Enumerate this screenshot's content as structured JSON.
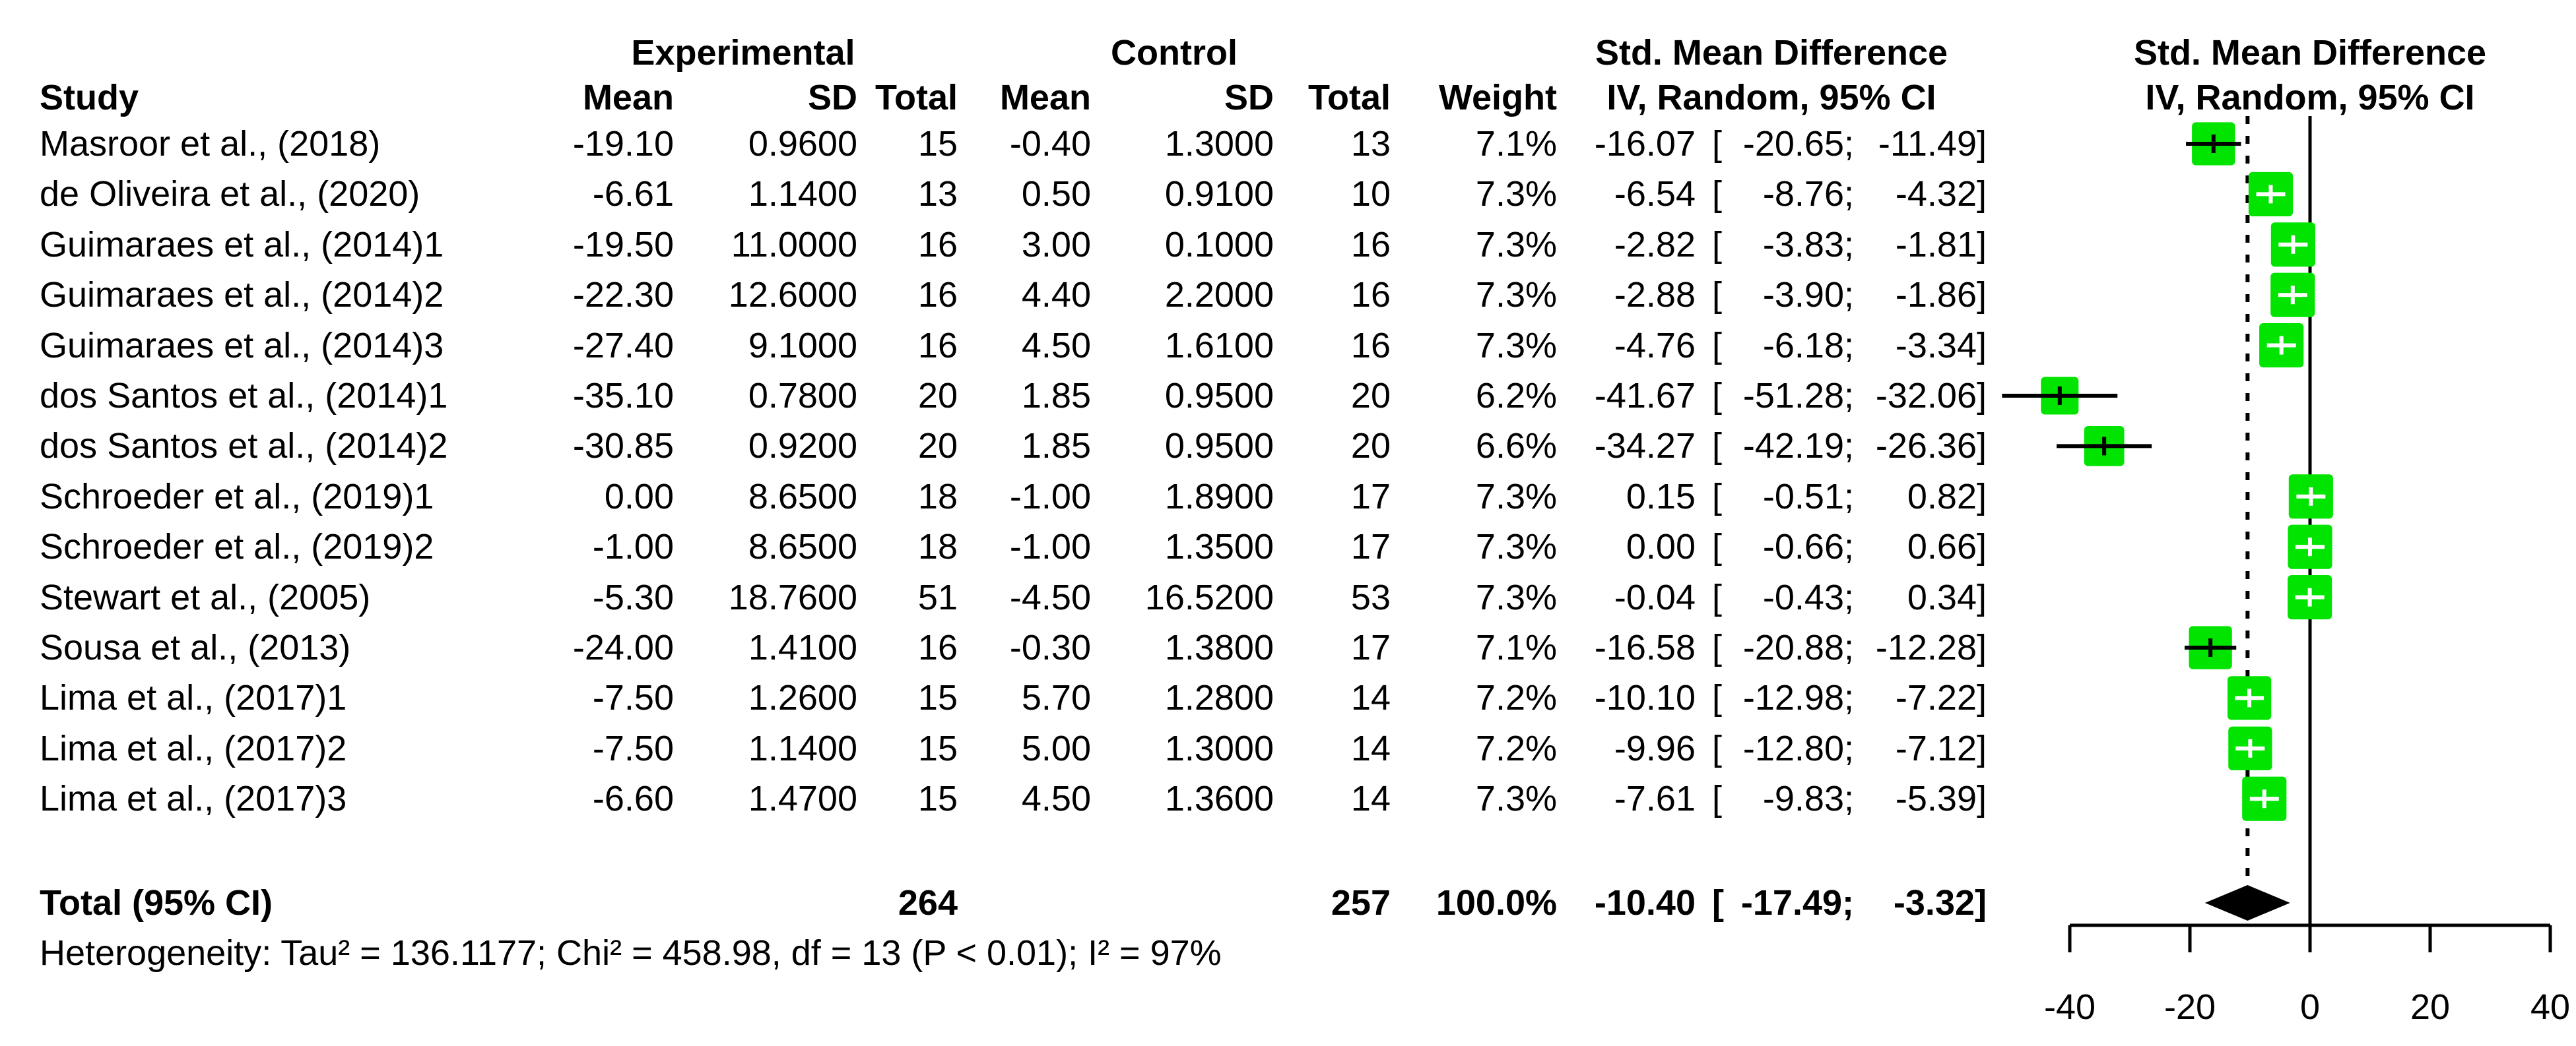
{
  "chart_data": {
    "type": "scatter",
    "variant": "forest-plot-meta-analysis",
    "title": "",
    "grid": false,
    "legend_position": "none",
    "headers": {
      "group_experimental": "Experimental",
      "group_control": "Control",
      "smd_table": "Std. Mean Difference",
      "smd_plot": "Std. Mean Difference",
      "study": "Study",
      "mean": "Mean",
      "sd": "SD",
      "total": "Total",
      "mean2": "Mean",
      "sd2": "SD",
      "total2": "Total",
      "weight": "Weight",
      "iv_table": "IV, Random, 95% CI",
      "iv_plot": "IV, Random, 95% CI"
    },
    "studies": [
      {
        "name": "Masroor et al., (2018)",
        "exp_mean": -19.1,
        "exp_sd": 0.96,
        "exp_total": 15,
        "ctrl_mean": -0.4,
        "ctrl_sd": 1.3,
        "ctrl_total": 13,
        "weight_pct": 7.1,
        "smd": -16.07,
        "ci_low": -20.65,
        "ci_high": -11.49
      },
      {
        "name": "de Oliveira et al., (2020)",
        "exp_mean": -6.61,
        "exp_sd": 1.14,
        "exp_total": 13,
        "ctrl_mean": 0.5,
        "ctrl_sd": 0.91,
        "ctrl_total": 10,
        "weight_pct": 7.3,
        "smd": -6.54,
        "ci_low": -8.76,
        "ci_high": -4.32
      },
      {
        "name": "Guimaraes et al., (2014)1",
        "exp_mean": -19.5,
        "exp_sd": 11.0,
        "exp_total": 16,
        "ctrl_mean": 3.0,
        "ctrl_sd": 0.1,
        "ctrl_total": 16,
        "weight_pct": 7.3,
        "smd": -2.82,
        "ci_low": -3.83,
        "ci_high": -1.81
      },
      {
        "name": "Guimaraes et al., (2014)2",
        "exp_mean": -22.3,
        "exp_sd": 12.6,
        "exp_total": 16,
        "ctrl_mean": 4.4,
        "ctrl_sd": 2.2,
        "ctrl_total": 16,
        "weight_pct": 7.3,
        "smd": -2.88,
        "ci_low": -3.9,
        "ci_high": -1.86
      },
      {
        "name": "Guimaraes et al., (2014)3",
        "exp_mean": -27.4,
        "exp_sd": 9.1,
        "exp_total": 16,
        "ctrl_mean": 4.5,
        "ctrl_sd": 1.61,
        "ctrl_total": 16,
        "weight_pct": 7.3,
        "smd": -4.76,
        "ci_low": -6.18,
        "ci_high": -3.34
      },
      {
        "name": "dos Santos et al., (2014)1",
        "exp_mean": -35.1,
        "exp_sd": 0.78,
        "exp_total": 20,
        "ctrl_mean": 1.85,
        "ctrl_sd": 0.95,
        "ctrl_total": 20,
        "weight_pct": 6.2,
        "smd": -41.67,
        "ci_low": -51.28,
        "ci_high": -32.06
      },
      {
        "name": "dos Santos et al., (2014)2",
        "exp_mean": -30.85,
        "exp_sd": 0.92,
        "exp_total": 20,
        "ctrl_mean": 1.85,
        "ctrl_sd": 0.95,
        "ctrl_total": 20,
        "weight_pct": 6.6,
        "smd": -34.27,
        "ci_low": -42.19,
        "ci_high": -26.36
      },
      {
        "name": "Schroeder et al., (2019)1",
        "exp_mean": 0.0,
        "exp_sd": 8.65,
        "exp_total": 18,
        "ctrl_mean": -1.0,
        "ctrl_sd": 1.89,
        "ctrl_total": 17,
        "weight_pct": 7.3,
        "smd": 0.15,
        "ci_low": -0.51,
        "ci_high": 0.82
      },
      {
        "name": "Schroeder et al., (2019)2",
        "exp_mean": -1.0,
        "exp_sd": 8.65,
        "exp_total": 18,
        "ctrl_mean": -1.0,
        "ctrl_sd": 1.35,
        "ctrl_total": 17,
        "weight_pct": 7.3,
        "smd": 0.0,
        "ci_low": -0.66,
        "ci_high": 0.66
      },
      {
        "name": "Stewart et al., (2005)",
        "exp_mean": -5.3,
        "exp_sd": 18.76,
        "exp_total": 51,
        "ctrl_mean": -4.5,
        "ctrl_sd": 16.52,
        "ctrl_total": 53,
        "weight_pct": 7.3,
        "smd": -0.04,
        "ci_low": -0.43,
        "ci_high": 0.34
      },
      {
        "name": "Sousa et al., (2013)",
        "exp_mean": -24.0,
        "exp_sd": 1.41,
        "exp_total": 16,
        "ctrl_mean": -0.3,
        "ctrl_sd": 1.38,
        "ctrl_total": 17,
        "weight_pct": 7.1,
        "smd": -16.58,
        "ci_low": -20.88,
        "ci_high": -12.28
      },
      {
        "name": "Lima et al., (2017)1",
        "exp_mean": -7.5,
        "exp_sd": 1.26,
        "exp_total": 15,
        "ctrl_mean": 5.7,
        "ctrl_sd": 1.28,
        "ctrl_total": 14,
        "weight_pct": 7.2,
        "smd": -10.1,
        "ci_low": -12.98,
        "ci_high": -7.22
      },
      {
        "name": "Lima et al., (2017)2",
        "exp_mean": -7.5,
        "exp_sd": 1.14,
        "exp_total": 15,
        "ctrl_mean": 5.0,
        "ctrl_sd": 1.3,
        "ctrl_total": 14,
        "weight_pct": 7.2,
        "smd": -9.96,
        "ci_low": -12.8,
        "ci_high": -7.12
      },
      {
        "name": "Lima et al., (2017)3",
        "exp_mean": -6.6,
        "exp_sd": 1.47,
        "exp_total": 15,
        "ctrl_mean": 4.5,
        "ctrl_sd": 1.36,
        "ctrl_total": 14,
        "weight_pct": 7.3,
        "smd": -7.61,
        "ci_low": -9.83,
        "ci_high": -5.39
      }
    ],
    "pooled": {
      "label": "Total (95% CI)",
      "exp_total": 264,
      "ctrl_total": 257,
      "weight_pct": 100.0,
      "smd": -10.4,
      "ci_low": -17.49,
      "ci_high": -3.32
    },
    "heterogeneity_text": "Heterogeneity: Tau² = 136.1177; Chi² = 458.98, df = 13 (P < 0.01); I² = 97%",
    "axis": {
      "xlabel": "",
      "xlim": [
        -40,
        40
      ],
      "ticks": [
        -40,
        -20,
        0,
        20,
        40
      ],
      "null_line_x": 0,
      "pooled_line_x": -10.4,
      "pooled_line_style": "dashed"
    },
    "colors": {
      "square": "#00E400",
      "diamond": "#000000",
      "lines": "#000000",
      "background": "#FFFFFF",
      "text": "#000000"
    }
  }
}
